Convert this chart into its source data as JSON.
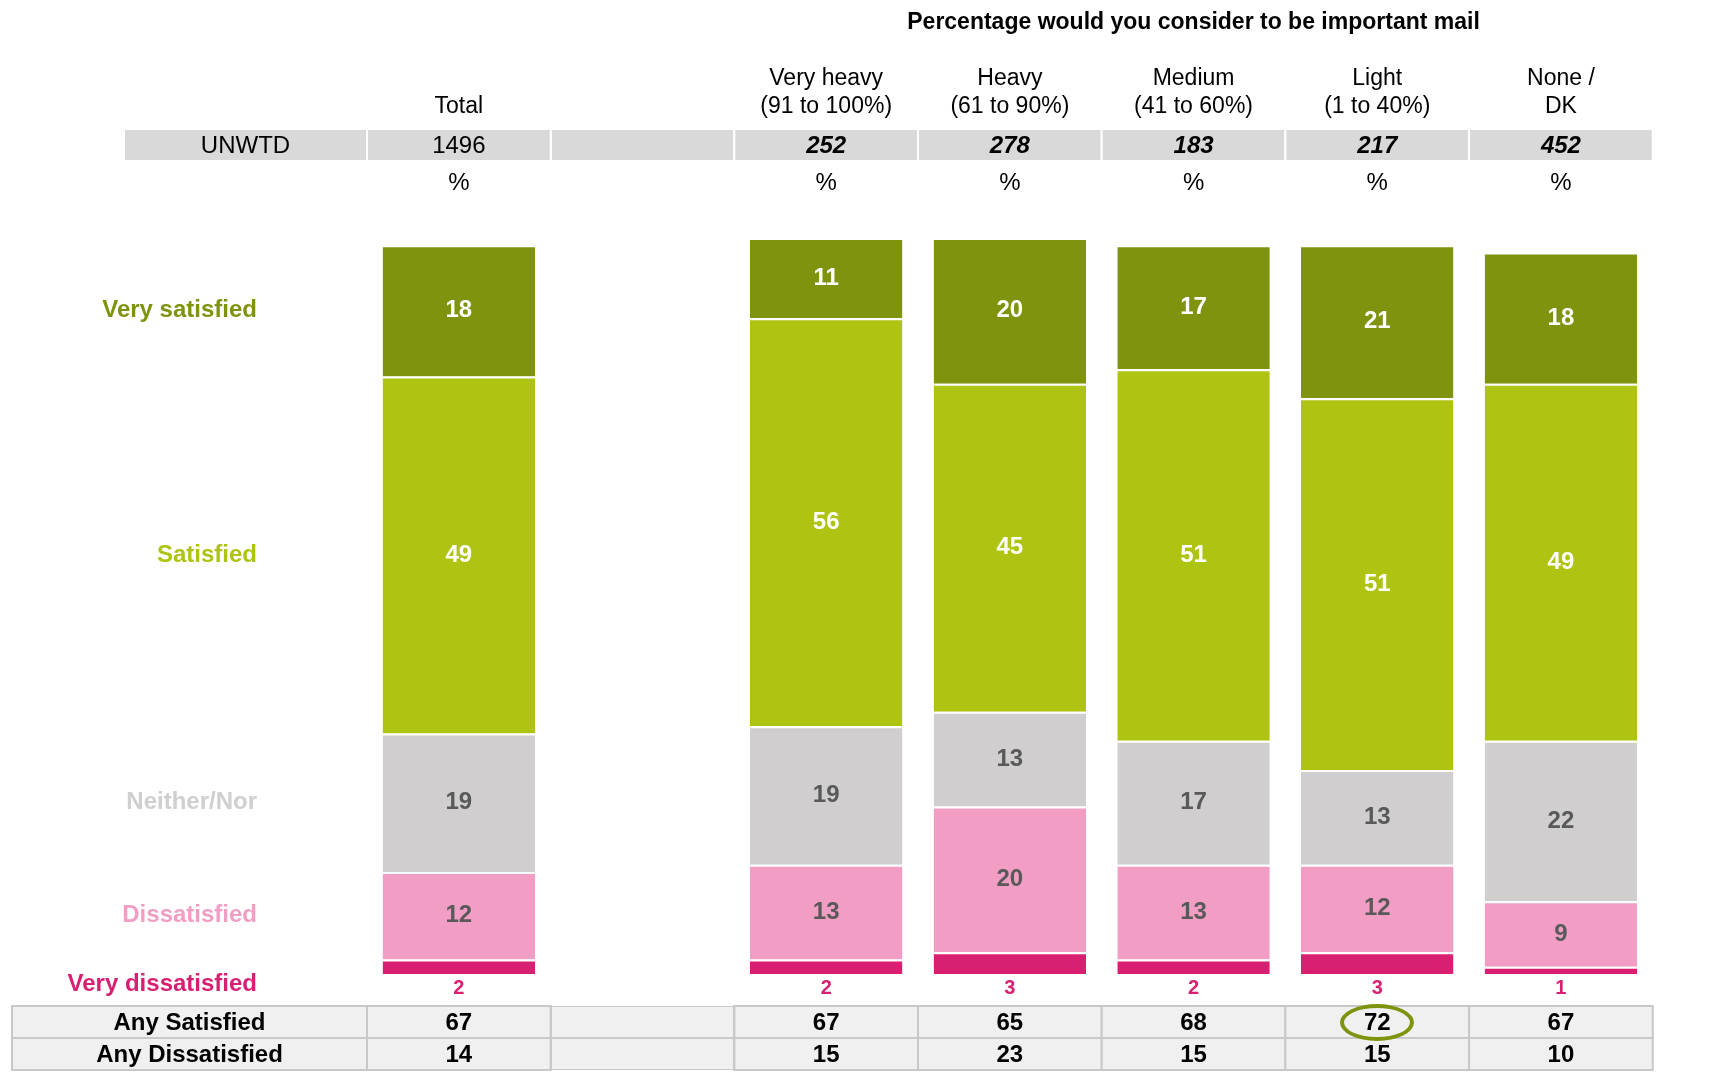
{
  "chart_data": {
    "type": "bar",
    "stacked": true,
    "subtitle": "Percentage would you consider to be important mail",
    "categories": [
      "Total",
      null,
      "Very heavy\n(91 to 100%)",
      "Heavy\n(61 to 90%)",
      "Medium\n(41 to 60%)",
      "Light\n(1 to 40%)",
      "None /\nDK"
    ],
    "series": [
      {
        "name": "Very dissatisfied",
        "color": "#d81f72",
        "values": [
          2,
          null,
          2,
          3,
          2,
          3,
          1
        ]
      },
      {
        "name": "Dissatisfied",
        "color": "#f29ec4",
        "values": [
          12,
          null,
          13,
          20,
          13,
          12,
          9
        ]
      },
      {
        "name": "Neither/Nor",
        "color": "#d0cecf",
        "values": [
          19,
          null,
          19,
          13,
          17,
          13,
          22
        ]
      },
      {
        "name": "Satisfied",
        "color": "#aec312",
        "values": [
          49,
          null,
          56,
          45,
          51,
          51,
          49
        ]
      },
      {
        "name": "Very satisfied",
        "color": "#7f930f",
        "values": [
          18,
          null,
          11,
          20,
          17,
          21,
          18
        ]
      }
    ],
    "data_labels": true,
    "legend": "left",
    "annotations": [
      "UNWTD",
      "1496",
      "252",
      "278",
      "183",
      "217",
      "452",
      "%",
      "%",
      "%",
      "%",
      "%",
      "%",
      "Any Satisfied",
      "67",
      "67",
      "65",
      "68",
      "72",
      "67",
      "Any Dissatisfied",
      "14",
      "15",
      "23",
      "15",
      "15",
      "10"
    ]
  }
}
